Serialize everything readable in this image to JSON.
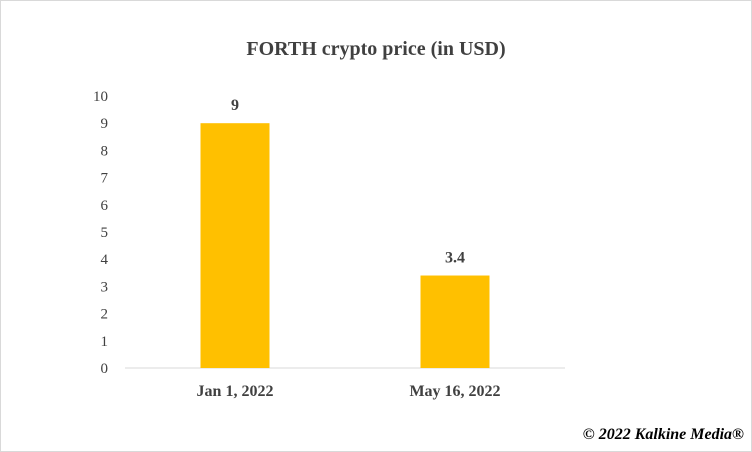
{
  "chart_data": {
    "type": "bar",
    "title": "FORTH crypto price (in USD)",
    "categories": [
      "Jan 1, 2022",
      "May 16, 2022"
    ],
    "values": [
      9,
      3.4
    ],
    "data_labels": [
      "9",
      "3.4"
    ],
    "xlabel": "",
    "ylabel": "",
    "ylim": [
      0,
      10
    ],
    "yticks": [
      "0",
      "1",
      "2",
      "3",
      "4",
      "5",
      "6",
      "7",
      "8",
      "9",
      "10"
    ],
    "grid": false,
    "legend": "none",
    "bar_color": "#FFC000"
  },
  "footer": {
    "copyright": "© 2022 Kalkine Media®"
  }
}
